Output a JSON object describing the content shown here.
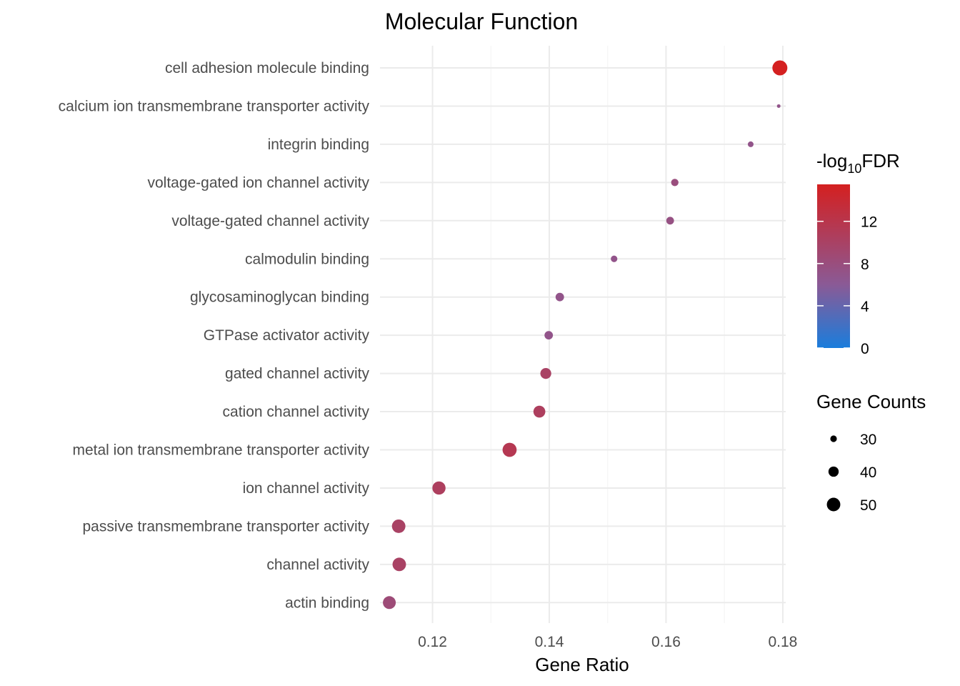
{
  "chart_data": {
    "type": "scatter",
    "title": "Molecular Function",
    "xlabel": "Gene Ratio",
    "ylabel": "",
    "xlim": [
      0.111,
      0.1805
    ],
    "x_ticks": [
      0.12,
      0.14,
      0.16,
      0.18
    ],
    "x_tick_labels": [
      "0.12",
      "0.14",
      "0.16",
      "0.18"
    ],
    "categories": [
      "cell adhesion molecule binding",
      "calcium ion transmembrane transporter activity",
      "integrin binding",
      "voltage-gated ion channel activity",
      "voltage-gated channel activity",
      "calmodulin binding",
      "glycosaminoglycan binding",
      "GTPase activator activity",
      "gated channel activity",
      "cation channel activity",
      "metal ion transmembrane transporter activity",
      "ion channel activity",
      "passive transmembrane transporter activity",
      "channel activity",
      "actin binding"
    ],
    "points": [
      {
        "term": "cell adhesion molecule binding",
        "gene_ratio": 0.1795,
        "gene_count": 55,
        "neg_log10_fdr": 15.5
      },
      {
        "term": "calcium ion transmembrane transporter activity",
        "gene_ratio": 0.1793,
        "gene_count": 23,
        "neg_log10_fdr": 7.0
      },
      {
        "term": "integrin binding",
        "gene_ratio": 0.1745,
        "gene_count": 28,
        "neg_log10_fdr": 7.0
      },
      {
        "term": "voltage-gated ion channel activity",
        "gene_ratio": 0.1615,
        "gene_count": 32,
        "neg_log10_fdr": 8.0
      },
      {
        "term": "voltage-gated channel activity",
        "gene_ratio": 0.1607,
        "gene_count": 33,
        "neg_log10_fdr": 7.5
      },
      {
        "term": "calmodulin binding",
        "gene_ratio": 0.1511,
        "gene_count": 30,
        "neg_log10_fdr": 7.0
      },
      {
        "term": "glycosaminoglycan binding",
        "gene_ratio": 0.1418,
        "gene_count": 35,
        "neg_log10_fdr": 7.0
      },
      {
        "term": "GTPase activator activity",
        "gene_ratio": 0.1399,
        "gene_count": 35,
        "neg_log10_fdr": 7.0
      },
      {
        "term": "gated channel activity",
        "gene_ratio": 0.1394,
        "gene_count": 42,
        "neg_log10_fdr": 10.0
      },
      {
        "term": "cation channel activity",
        "gene_ratio": 0.1383,
        "gene_count": 45,
        "neg_log10_fdr": 10.5
      },
      {
        "term": "metal ion transmembrane transporter activity",
        "gene_ratio": 0.1332,
        "gene_count": 52,
        "neg_log10_fdr": 11.5
      },
      {
        "term": "ion channel activity",
        "gene_ratio": 0.1211,
        "gene_count": 49,
        "neg_log10_fdr": 10.5
      },
      {
        "term": "passive transmembrane transporter activity",
        "gene_ratio": 0.1142,
        "gene_count": 50,
        "neg_log10_fdr": 10.0
      },
      {
        "term": "channel activity",
        "gene_ratio": 0.1143,
        "gene_count": 50,
        "neg_log10_fdr": 10.0
      },
      {
        "term": "actin binding",
        "gene_ratio": 0.1126,
        "gene_count": 48,
        "neg_log10_fdr": 8.5
      }
    ],
    "color_legend": {
      "title_prefix": "-log",
      "title_subscript": "10",
      "title_suffix": "FDR",
      "range": [
        0,
        15.5
      ],
      "ticks": [
        0,
        4,
        8,
        12
      ],
      "tick_labels": [
        "0",
        "4",
        "8",
        "12"
      ],
      "low_color": "#1a7ddc",
      "mid_color": "#8a5a96",
      "high_color": "#d42020",
      "mid_value": 6
    },
    "size_legend": {
      "title": "Gene Counts",
      "values": [
        30,
        40,
        50
      ],
      "labels": [
        "30",
        "40",
        "50"
      ],
      "count_range": [
        23,
        55
      ]
    },
    "grid": true,
    "legend_position": "right"
  }
}
